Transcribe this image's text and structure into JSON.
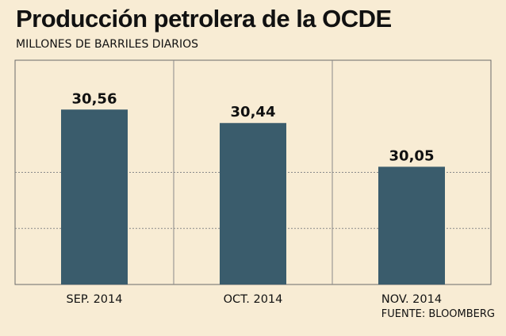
{
  "title": "Producción petrolera de la OCDE",
  "subtitle": "MILLONES DE BARRILES DIARIOS",
  "source": "FUENTE: BLOOMBERG",
  "colors": {
    "background": "#f8ecd4",
    "bar": "#3a5c6c",
    "grid": "#8a8a8a",
    "frame": "#6a6a6a"
  },
  "chart_data": {
    "type": "bar",
    "title": "Producción petrolera de la OCDE",
    "subtitle": "MILLONES DE BARRILES DIARIOS",
    "categories": [
      "SEP. 2014",
      "OCT. 2014",
      "NOV. 2014"
    ],
    "values": [
      30.56,
      30.44,
      30.05
    ],
    "value_labels": [
      "30,56",
      "30,44",
      "30,05"
    ],
    "xlabel": "",
    "ylabel": "",
    "ylim": [
      29.0,
      31.0
    ],
    "grid": true,
    "grid_style": "dotted horizontal",
    "legend": "none"
  }
}
